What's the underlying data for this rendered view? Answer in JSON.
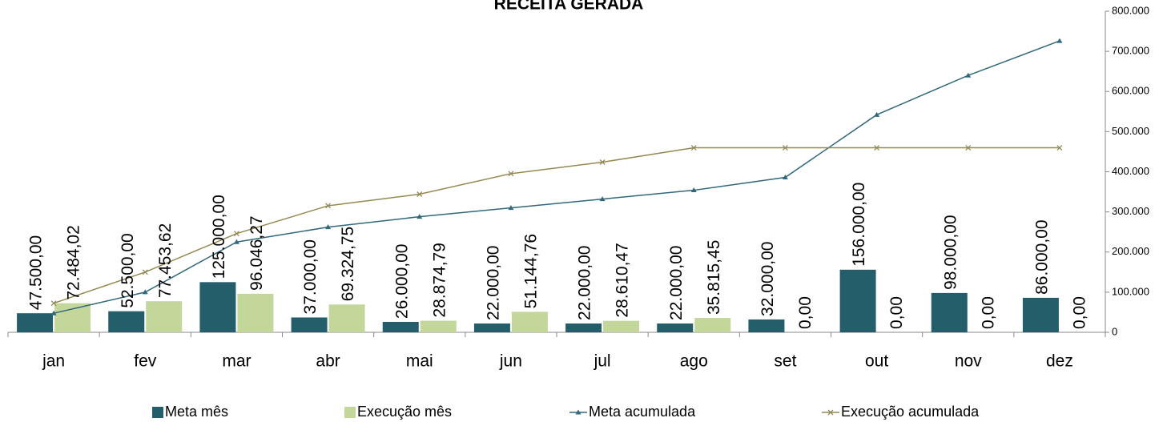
{
  "chart_data": {
    "type": "bar-line",
    "title": "RECEITA GERADA",
    "categories": [
      "jan",
      "fev",
      "mar",
      "abr",
      "mai",
      "jun",
      "jul",
      "ago",
      "set",
      "out",
      "nov",
      "dez"
    ],
    "series": [
      {
        "name": "Meta mês",
        "kind": "bar",
        "color": "#255e6b",
        "axis": "y2",
        "values": [
          47500,
          52500,
          125000,
          37000,
          26000,
          22000,
          22000,
          22000,
          32000,
          156000,
          98000,
          86000
        ],
        "value_labels": [
          "47.500,00",
          "52.500,00",
          "125.000,00",
          "37.000,00",
          "26.000,00",
          "22.000,00",
          "22.000,00",
          "22.000,00",
          "32.000,00",
          "156.000,00",
          "98.000,00",
          "86.000,00"
        ]
      },
      {
        "name": "Execução mês",
        "kind": "bar",
        "color": "#c4d79b",
        "axis": "y2",
        "values": [
          72484.02,
          77453.62,
          96046.27,
          69324.75,
          28874.79,
          51144.76,
          28610.47,
          35815.45,
          0,
          0,
          0,
          0
        ],
        "value_labels": [
          "72.484,02",
          "77.453,62",
          "96.046,27",
          "69.324,75",
          "28.874,79",
          "51.144,76",
          "28.610,47",
          "35.815,45",
          "0,00",
          "0,00",
          "0,00",
          "0,00"
        ]
      },
      {
        "name": "Meta acumulada",
        "kind": "line",
        "marker": "triangle",
        "color": "#31687a",
        "axis": "y2",
        "values": [
          47500,
          100000,
          225000,
          262000,
          288000,
          310000,
          332000,
          354000,
          386000,
          542000,
          640000,
          726000
        ]
      },
      {
        "name": "Execução acumulada",
        "kind": "line",
        "marker": "x",
        "color": "#948a54",
        "axis": "y2",
        "values": [
          72484.02,
          149937.64,
          245983.91,
          315308.66,
          344183.45,
          395328.21,
          423938.68,
          459754.13,
          459754.13,
          459754.13,
          459754.13,
          459754.13
        ]
      }
    ],
    "y2lim": [
      0,
      800000
    ],
    "y2ticks": [
      0,
      {
        "value": 100000,
        "label": "100.000"
      },
      {
        "value": 200000,
        "label": "200.000"
      },
      {
        "value": 300000,
        "label": "300.000"
      },
      {
        "value": 400000,
        "label": "400.000"
      },
      {
        "value": 500000,
        "label": "500.000"
      },
      {
        "value": 600000,
        "label": "600.000"
      },
      {
        "value": 700000,
        "label": "700.000"
      },
      {
        "value": 800000,
        "label": "800.000"
      }
    ]
  }
}
